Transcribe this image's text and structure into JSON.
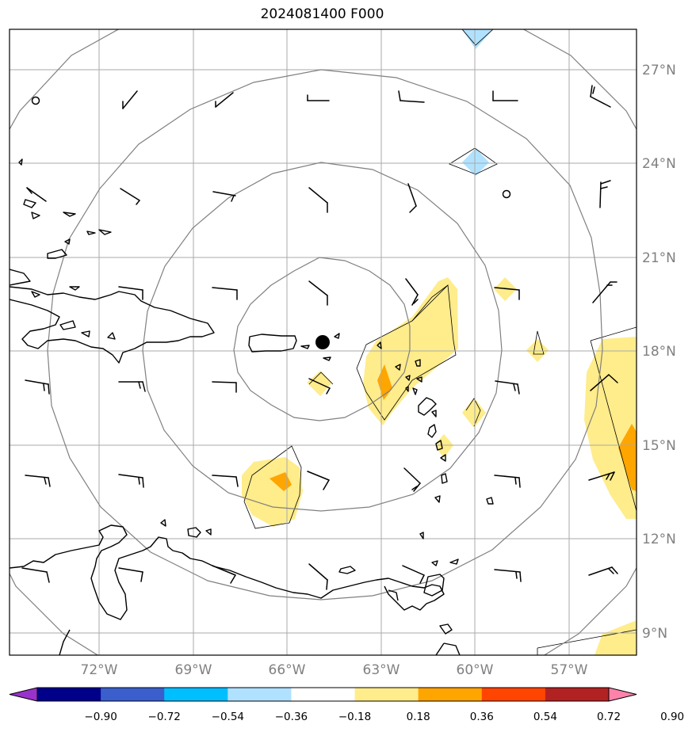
{
  "title": "2024081400 F000",
  "map": {
    "lon_range": [
      -75,
      -55
    ],
    "lat_range": [
      8.3,
      28.2
    ],
    "gridlines": true,
    "storm_center": {
      "lon": -64.6,
      "lat": 18.3
    },
    "range_rings_deg": [
      2.5,
      5,
      7.5,
      10
    ],
    "lon_ticks": [
      {
        "value": -72,
        "label": "72°W"
      },
      {
        "value": -69,
        "label": "69°W"
      },
      {
        "value": -66,
        "label": "66°W"
      },
      {
        "value": -63,
        "label": "63°W"
      },
      {
        "value": -60,
        "label": "60°W"
      },
      {
        "value": -57,
        "label": "57°W"
      }
    ],
    "lat_ticks": [
      {
        "value": 27,
        "label": "27°N"
      },
      {
        "value": 24,
        "label": "24°N"
      },
      {
        "value": 21,
        "label": "21°N"
      },
      {
        "value": 18,
        "label": "18°N"
      },
      {
        "value": 15,
        "label": "15°N"
      },
      {
        "value": 12,
        "label": "12°N"
      },
      {
        "value": 9,
        "label": "9°N"
      }
    ]
  },
  "colorbar": {
    "extend": "both",
    "levels": [
      "−0.90",
      "−0.72",
      "−0.54",
      "−0.36",
      "−0.18",
      "0.18",
      "0.36",
      "0.54",
      "0.72",
      "0.90"
    ],
    "colors": [
      "#9932cc",
      "#00008b",
      "#3a5fcd",
      "#00bfff",
      "#b0e2ff",
      "#ffffff",
      "#ffec8b",
      "#ffa500",
      "#ff4500",
      "#b22222",
      "#ff82ab"
    ]
  }
}
